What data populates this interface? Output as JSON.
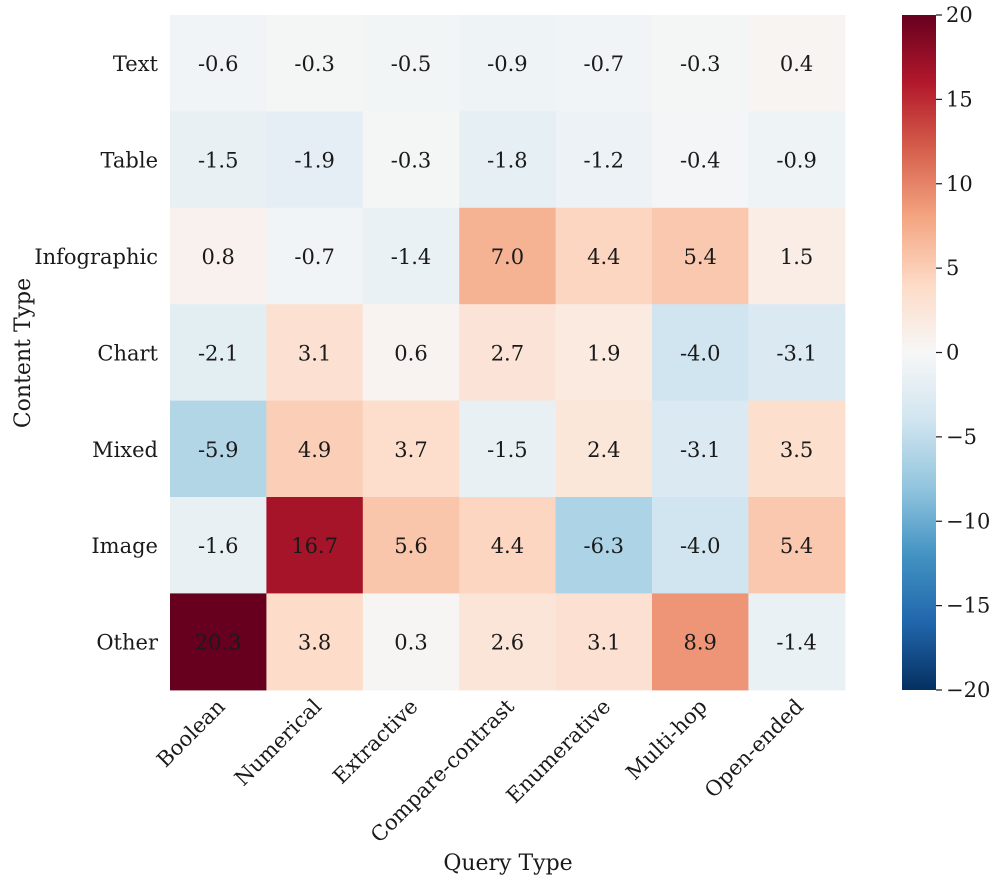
{
  "chart_data": {
    "type": "heatmap",
    "title": "",
    "xlabel": "Query Type",
    "ylabel": "Content Type",
    "x_categories": [
      "Boolean",
      "Numerical",
      "Extractive",
      "Compare-contrast",
      "Enumerative",
      "Multi-hop",
      "Open-ended"
    ],
    "y_categories": [
      "Text",
      "Table",
      "Infographic",
      "Chart",
      "Mixed",
      "Image",
      "Other"
    ],
    "values": [
      [
        -0.6,
        -0.3,
        -0.5,
        -0.9,
        -0.7,
        -0.3,
        0.4
      ],
      [
        -1.5,
        -1.9,
        -0.3,
        -1.8,
        -1.2,
        -0.4,
        -0.9
      ],
      [
        0.8,
        -0.7,
        -1.4,
        7.0,
        4.4,
        5.4,
        1.5
      ],
      [
        -2.1,
        3.1,
        0.6,
        2.7,
        1.9,
        -4.0,
        -3.1
      ],
      [
        -5.9,
        4.9,
        3.7,
        -1.5,
        2.4,
        -3.1,
        3.5
      ],
      [
        -1.6,
        16.7,
        5.6,
        4.4,
        -6.3,
        -4.0,
        5.4
      ],
      [
        20.3,
        3.8,
        0.3,
        2.6,
        3.1,
        8.9,
        -1.4
      ]
    ],
    "value_labels": [
      [
        "-0.6",
        "-0.3",
        "-0.5",
        "-0.9",
        "-0.7",
        "-0.3",
        "0.4"
      ],
      [
        "-1.5",
        "-1.9",
        "-0.3",
        "-1.8",
        "-1.2",
        "-0.4",
        "-0.9"
      ],
      [
        "0.8",
        "-0.7",
        "-1.4",
        "7.0",
        "4.4",
        "5.4",
        "1.5"
      ],
      [
        "-2.1",
        "3.1",
        "0.6",
        "2.7",
        "1.9",
        "-4.0",
        "-3.1"
      ],
      [
        "-5.9",
        "4.9",
        "3.7",
        "-1.5",
        "2.4",
        "-3.1",
        "3.5"
      ],
      [
        "-1.6",
        "16.7",
        "5.6",
        "4.4",
        "-6.3",
        "-4.0",
        "5.4"
      ],
      [
        "20.3",
        "3.8",
        "0.3",
        "2.6",
        "3.1",
        "8.9",
        "-1.4"
      ]
    ],
    "colorbar": {
      "range": [
        -20,
        20
      ],
      "ticks": [
        20,
        15,
        10,
        5,
        0,
        -5,
        -10,
        -15,
        -20
      ],
      "tick_labels": [
        "20",
        "15",
        "10",
        "5",
        "0",
        "−5",
        "−10",
        "−15",
        "−20"
      ],
      "colormap": "RdBu_r",
      "colors": [
        "#053061",
        "#2166ac",
        "#4393c3",
        "#92c5de",
        "#d1e5f0",
        "#f7f7f7",
        "#fddbc7",
        "#f4a582",
        "#d6604d",
        "#b2182b",
        "#67001f"
      ]
    },
    "legend_position": "right",
    "grid": false
  }
}
